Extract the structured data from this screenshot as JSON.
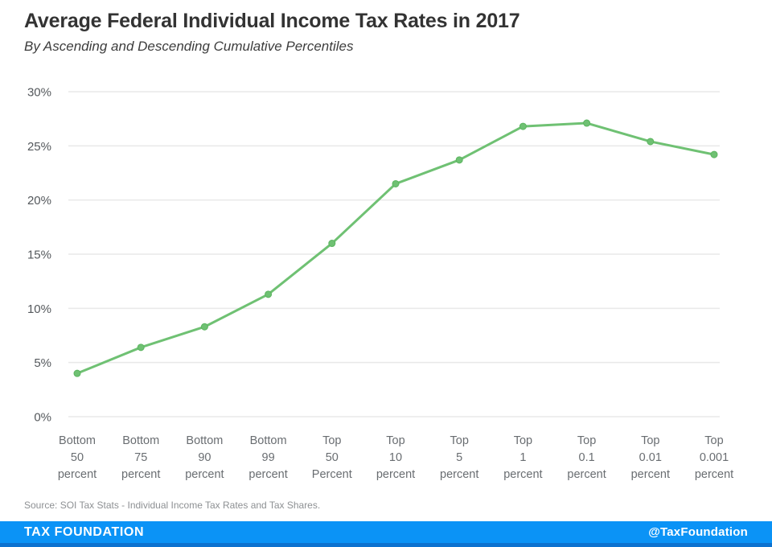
{
  "header": {
    "title": "Average Federal Individual Income Tax Rates in 2017",
    "subtitle": "By Ascending and Descending Cumulative Percentiles"
  },
  "chart_data": {
    "type": "line",
    "title": "Average Federal Individual Income Tax Rates in 2017",
    "subtitle": "By Ascending and Descending Cumulative Percentiles",
    "categories": [
      "Bottom 50 percent",
      "Bottom 75 percent",
      "Bottom 90 percent",
      "Bottom 99 percent",
      "Top 50 Percent",
      "Top 10 percent",
      "Top 5 percent",
      "Top 1 percent",
      "Top 0.1 percent",
      "Top 0.01 percent",
      "Top 0.001 percent"
    ],
    "series": [
      {
        "name": "Average federal individual income tax rate",
        "values": [
          4.0,
          6.4,
          8.3,
          11.3,
          16.0,
          21.5,
          23.7,
          26.8,
          27.1,
          25.4,
          24.2
        ],
        "color": "#6fc173",
        "marker_color": "#5bb55f"
      }
    ],
    "unit": "%",
    "xlabel": "",
    "ylabel": "",
    "y_ticks": [
      "0%",
      "5%",
      "10%",
      "15%",
      "20%",
      "25%",
      "30%"
    ],
    "ylim": [
      0,
      30
    ],
    "grid": "horizontal",
    "legend": "none"
  },
  "source": {
    "text": "Source: SOI Tax Stats - Individual Income Tax Rates and Tax Shares."
  },
  "footer": {
    "brand": "TAX FOUNDATION",
    "handle": "@TaxFoundation",
    "background": "#0b93f6",
    "border_color": "#0d72cf",
    "text_color": "#ffffff"
  }
}
